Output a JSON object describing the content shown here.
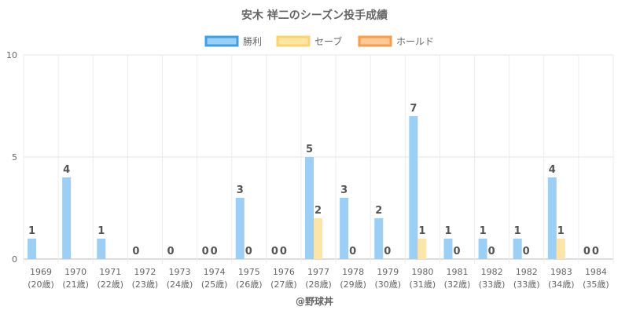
{
  "chart_data": {
    "type": "bar",
    "title": "安木 祥二のシーズン投手成績",
    "categories": [
      "1969",
      "1970",
      "1971",
      "1972",
      "1973",
      "1974",
      "1975",
      "1976",
      "1977",
      "1978",
      "1979",
      "1980",
      "1981",
      "1982",
      "1982",
      "1983",
      "1984"
    ],
    "sublabels": [
      "(20歳)",
      "(21歳)",
      "(22歳)",
      "(23歳)",
      "(24歳)",
      "(25歳)",
      "(26歳)",
      "(27歳)",
      "(28歳)",
      "(29歳)",
      "(30歳)",
      "(31歳)",
      "(32歳)",
      "(33歳)",
      "(33歳)",
      "(34歳)",
      "(35歳)"
    ],
    "series": [
      {
        "name": "勝利",
        "color": "#9ccff5",
        "border": "#3aa0e8",
        "values": [
          1,
          4,
          1,
          0,
          0,
          0,
          3,
          0,
          5,
          3,
          2,
          7,
          1,
          1,
          1,
          4,
          0
        ]
      },
      {
        "name": "セーブ",
        "color": "#fde5a6",
        "border": "#fdd36a",
        "values": [
          null,
          null,
          null,
          null,
          null,
          0,
          0,
          0,
          2,
          0,
          0,
          1,
          0,
          0,
          0,
          1,
          0
        ]
      },
      {
        "name": "ホールド",
        "color": "#fdc996",
        "border": "#fb9b45",
        "values": [
          null,
          null,
          null,
          null,
          null,
          null,
          null,
          null,
          null,
          null,
          null,
          null,
          null,
          null,
          null,
          null,
          null
        ]
      }
    ],
    "ylim": [
      0,
      10
    ],
    "yticks": [
      0,
      5,
      10
    ],
    "grid": true,
    "legend": "top-center",
    "xlabel": "",
    "ylabel": ""
  },
  "credit": "@野球丼"
}
